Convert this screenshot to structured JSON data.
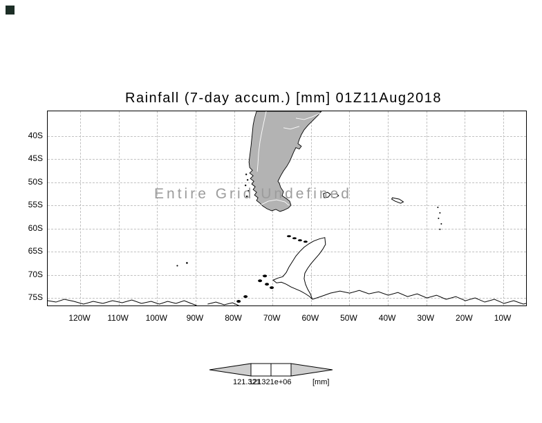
{
  "chart_data": {
    "type": "heatmap",
    "title": "Rainfall (7-day accum.) [mm] 01Z11Aug2018",
    "variable": "Rainfall (7-day accum.)",
    "units": "mm",
    "valid_time": "01Z11Aug2018",
    "x_tick_labels": [
      "120W",
      "110W",
      "100W",
      "90W",
      "80W",
      "70W",
      "60W",
      "50W",
      "40W",
      "30W",
      "20W",
      "10W"
    ],
    "y_tick_labels": [
      "40S",
      "45S",
      "50S",
      "55S",
      "60S",
      "65S",
      "70S",
      "75S"
    ],
    "xlim_deg_lon": [
      -128,
      -4
    ],
    "ylim_deg_lat": [
      -77,
      -34.5
    ],
    "grid": true,
    "values": [],
    "status": "Entire Grid Undefined",
    "colorbar_tick_labels": [
      "121.321",
      "121321e+06"
    ],
    "colorbar_unit": "[mm]",
    "basemap": "Southern South America and Antarctic Peninsula coastlines"
  },
  "colors": {
    "land_fill": "#b3b3b3",
    "grid_color": "#c0c0c0",
    "overlay_color": "#9c9c9c",
    "arrow_fill": "#cfcfcf"
  }
}
